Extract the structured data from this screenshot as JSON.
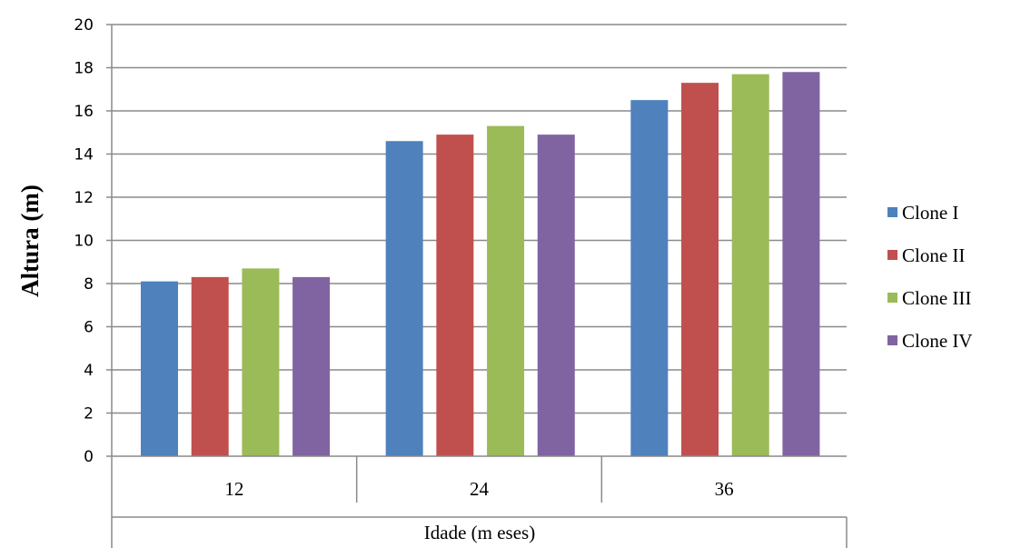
{
  "chart_data": {
    "type": "bar",
    "title": "",
    "xlabel": "Idade (m eses)",
    "ylabel": "Altura  (m)",
    "categories": [
      "12",
      "24",
      "36"
    ],
    "ylim": [
      0,
      20
    ],
    "yticks": [
      0,
      2,
      4,
      6,
      8,
      10,
      12,
      14,
      16,
      18,
      20
    ],
    "grid": true,
    "legend_position": "right",
    "series": [
      {
        "name": "Clone I",
        "color": "#4F81BD",
        "values": [
          8.1,
          14.6,
          16.5
        ]
      },
      {
        "name": "Clone II",
        "color": "#C0504D",
        "values": [
          8.3,
          14.9,
          17.3
        ]
      },
      {
        "name": "Clone III",
        "color": "#9BBB59",
        "values": [
          8.7,
          15.3,
          17.7
        ]
      },
      {
        "name": "Clone IV",
        "color": "#8064A2",
        "values": [
          8.3,
          14.9,
          17.8
        ]
      }
    ]
  }
}
